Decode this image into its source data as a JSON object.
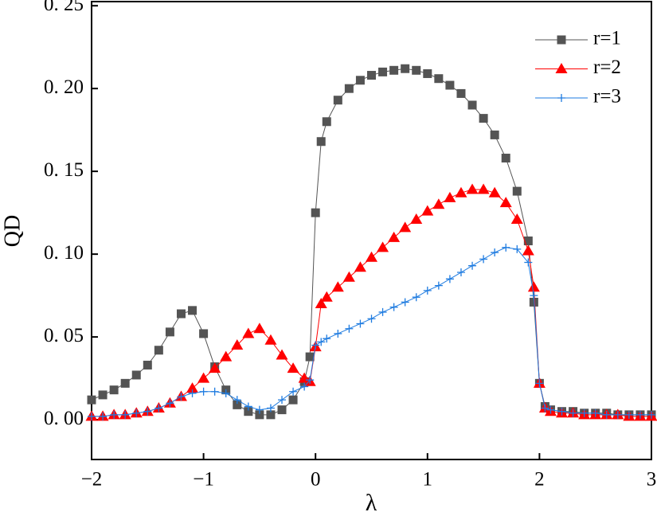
{
  "chart_data": {
    "type": "line",
    "x_label": "λ",
    "y_label": "QD",
    "x": [
      -2,
      -1.9,
      -1.8,
      -1.7,
      -1.6,
      -1.5,
      -1.4,
      -1.3,
      -1.2,
      -1.1,
      -1,
      -0.9,
      -0.8,
      -0.7,
      -0.6,
      -0.5,
      -0.4,
      -0.3,
      -0.2,
      -0.1,
      -0.05,
      0,
      0.05,
      0.1,
      0.2,
      0.3,
      0.4,
      0.5,
      0.6,
      0.7,
      0.8,
      0.9,
      1,
      1.1,
      1.2,
      1.3,
      1.4,
      1.5,
      1.6,
      1.7,
      1.8,
      1.9,
      1.95,
      2,
      2.05,
      2.1,
      2.2,
      2.3,
      2.4,
      2.5,
      2.6,
      2.7,
      2.8,
      2.9,
      3
    ],
    "series": [
      {
        "name": "r=1",
        "color": "#545454",
        "marker": "square",
        "values": [
          0.012,
          0.015,
          0.018,
          0.022,
          0.027,
          0.033,
          0.042,
          0.053,
          0.064,
          0.066,
          0.052,
          0.032,
          0.018,
          0.009,
          0.005,
          0.003,
          0.003,
          0.006,
          0.012,
          0.023,
          0.038,
          0.125,
          0.168,
          0.18,
          0.193,
          0.2,
          0.205,
          0.208,
          0.21,
          0.211,
          0.212,
          0.211,
          0.209,
          0.206,
          0.202,
          0.197,
          0.19,
          0.182,
          0.172,
          0.158,
          0.138,
          0.108,
          0.071,
          0.022,
          0.008,
          0.006,
          0.005,
          0.005,
          0.004,
          0.004,
          0.004,
          0.003,
          0.003,
          0.003,
          0.003
        ]
      },
      {
        "name": "r=2",
        "color": "#ff0000",
        "marker": "triangle",
        "values": [
          0.002,
          0.002,
          0.003,
          0.003,
          0.004,
          0.005,
          0.007,
          0.01,
          0.014,
          0.019,
          0.025,
          0.031,
          0.038,
          0.045,
          0.052,
          0.055,
          0.048,
          0.039,
          0.031,
          0.025,
          0.023,
          0.044,
          0.07,
          0.074,
          0.08,
          0.086,
          0.092,
          0.098,
          0.104,
          0.11,
          0.116,
          0.121,
          0.126,
          0.13,
          0.134,
          0.137,
          0.139,
          0.139,
          0.137,
          0.131,
          0.121,
          0.102,
          0.08,
          0.022,
          0.007,
          0.005,
          0.004,
          0.004,
          0.003,
          0.003,
          0.003,
          0.003,
          0.002,
          0.002,
          0.002
        ]
      },
      {
        "name": "r=3",
        "color": "#1e7be0",
        "marker": "plus",
        "values": [
          0.002,
          0.002,
          0.003,
          0.003,
          0.004,
          0.005,
          0.007,
          0.01,
          0.014,
          0.016,
          0.017,
          0.017,
          0.016,
          0.012,
          0.008,
          0.006,
          0.007,
          0.012,
          0.017,
          0.02,
          0.024,
          0.045,
          0.047,
          0.049,
          0.052,
          0.055,
          0.058,
          0.061,
          0.065,
          0.068,
          0.071,
          0.074,
          0.078,
          0.081,
          0.085,
          0.089,
          0.093,
          0.097,
          0.101,
          0.104,
          0.103,
          0.095,
          0.075,
          0.022,
          0.007,
          0.006,
          0.005,
          0.004,
          0.004,
          0.004,
          0.003,
          0.003,
          0.003,
          0.003,
          0.003
        ]
      }
    ],
    "xlim": [
      -2,
      3
    ],
    "xticks": [
      {
        "value": -2,
        "label": "−2"
      },
      {
        "value": -1,
        "label": "−1"
      },
      0,
      1,
      2,
      3
    ],
    "ylim": [
      -0.024,
      0.2525
    ],
    "yticks": [
      {
        "value": 0,
        "label": "0. 00"
      },
      {
        "value": 0.05,
        "label": "0. 05"
      },
      {
        "value": 0.1,
        "label": "0. 10"
      },
      {
        "value": 0.15,
        "label": "0. 15"
      },
      {
        "value": 0.2,
        "label": "0. 20"
      },
      {
        "value": 0.25,
        "label": "0. 25"
      }
    ],
    "legend": "upper right",
    "grid": false
  }
}
